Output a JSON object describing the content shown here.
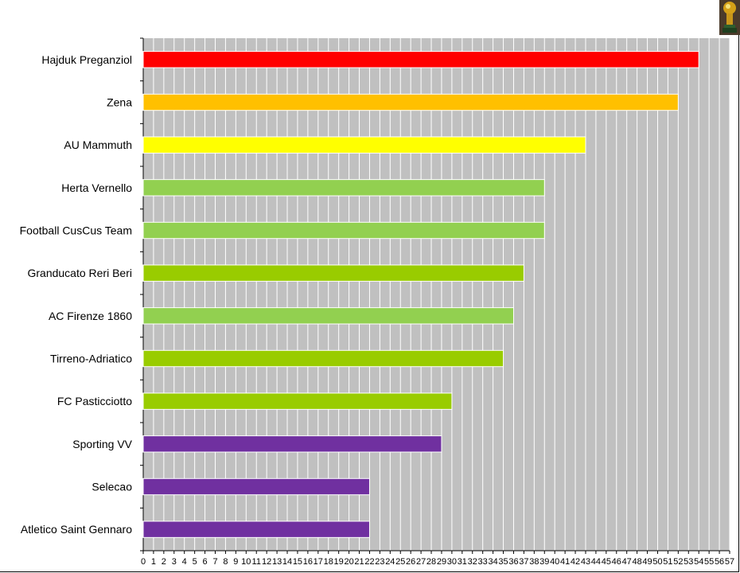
{
  "chart_data": {
    "type": "bar",
    "orientation": "horizontal",
    "title": "",
    "xlabel": "",
    "ylabel": "",
    "xlim": [
      0,
      57
    ],
    "grid": true,
    "legend": "none",
    "plot_background": "#c0c0c0",
    "categories": [
      "Hajduk Preganziol",
      "Zena",
      "AU Mammuth",
      "Herta Vernello",
      "Football CusCus Team",
      "Granducato Reri Beri",
      "AC Firenze 1860",
      "Tirreno-Adriatico",
      "FC Pasticciotto",
      "Sporting VV",
      "Selecao",
      "Atletico Saint Gennaro"
    ],
    "values": [
      54,
      52,
      43,
      39,
      39,
      37,
      36,
      35,
      30,
      29,
      22,
      22
    ],
    "colors": [
      "#ff0000",
      "#ffc000",
      "#ffff00",
      "#92d050",
      "#92d050",
      "#99cc00",
      "#92d050",
      "#99cc00",
      "#99cc00",
      "#7030a0",
      "#7030a0",
      "#7030a0"
    ],
    "tick_labels": [
      "0",
      "1",
      "2",
      "3",
      "4",
      "5",
      "6",
      "7",
      "8",
      "9",
      "10",
      "11",
      "12",
      "13",
      "14",
      "15",
      "16",
      "17",
      "18",
      "19",
      "20",
      "21",
      "22",
      "23",
      "24",
      "25",
      "26",
      "27",
      "28",
      "29",
      "30",
      "31",
      "32",
      "33",
      "34",
      "35",
      "36",
      "37",
      "38",
      "39",
      "40",
      "41",
      "42",
      "43",
      "44",
      "45",
      "46",
      "47",
      "48",
      "49",
      "50",
      "51",
      "52",
      "53",
      "54",
      "55",
      "56",
      "57"
    ]
  },
  "logo": {
    "icon": "trophy-icon"
  }
}
